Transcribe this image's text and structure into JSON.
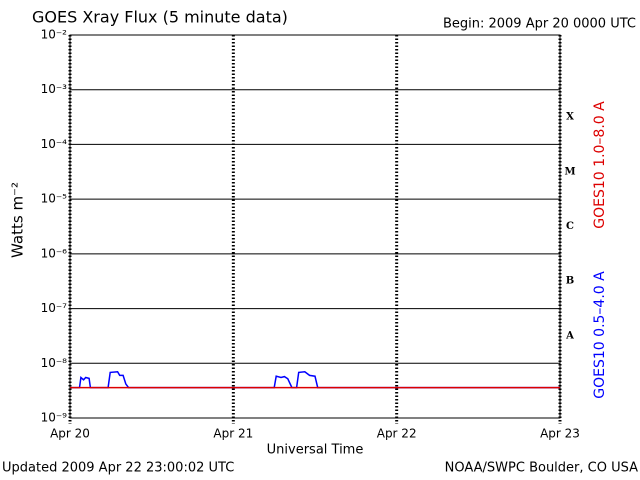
{
  "chart_data": {
    "type": "line",
    "title": "GOES Xray Flux (5 minute data)",
    "subtitle": "Begin:  2009 Apr 20 0000 UTC",
    "ylabel": "Watts m⁻²",
    "xlabel": "Universal Time",
    "log_y": true,
    "grid": true,
    "ylim": [
      1e-09,
      0.01
    ],
    "yticks": [
      {
        "value": 1e-09,
        "label": "10⁻⁹"
      },
      {
        "value": 1e-08,
        "label": "10⁻⁸"
      },
      {
        "value": 1e-07,
        "label": "10⁻⁷"
      },
      {
        "value": 1e-06,
        "label": "10⁻⁶"
      },
      {
        "value": 1e-05,
        "label": "10⁻⁵"
      },
      {
        "value": 0.0001,
        "label": "10⁻⁴"
      },
      {
        "value": 0.001,
        "label": "10⁻³"
      },
      {
        "value": 0.01,
        "label": "10⁻²"
      }
    ],
    "xlim": [
      0,
      72
    ],
    "xticks": [
      {
        "value": 0,
        "label": "Apr 20"
      },
      {
        "value": 24,
        "label": "Apr 21"
      },
      {
        "value": 48,
        "label": "Apr 22"
      },
      {
        "value": 72,
        "label": "Apr 23"
      }
    ],
    "flare_classes": [
      "X",
      "M",
      "C",
      "B",
      "A"
    ],
    "series": [
      {
        "name": "GOES10 0.5–4.0 A",
        "color": "#0000ff",
        "x": [
          0,
          1.4,
          1.6,
          2.0,
          2.3,
          2.8,
          3.0,
          5.6,
          5.9,
          7.0,
          7.3,
          7.8,
          8.2,
          8.6,
          30.0,
          30.3,
          31.0,
          31.5,
          32.0,
          32.6,
          33.3,
          33.6,
          34.5,
          35.2,
          36.0,
          36.4,
          72
        ],
        "values": [
          3.6e-09,
          3.6e-09,
          5.5e-09,
          5e-09,
          5.5e-09,
          5.3e-09,
          3.6e-09,
          3.6e-09,
          6.8e-09,
          7e-09,
          6e-09,
          6e-09,
          4.2e-09,
          3.6e-09,
          3.6e-09,
          5.8e-09,
          5.5e-09,
          5.7e-09,
          5.2e-09,
          3.6e-09,
          3.6e-09,
          6.8e-09,
          7e-09,
          6e-09,
          5.8e-09,
          3.6e-09,
          3.6e-09
        ]
      },
      {
        "name": "GOES10 1.0–8.0 A",
        "color": "#dd0000",
        "x": [
          0,
          72
        ],
        "values": [
          3.6e-09,
          3.6e-09
        ]
      }
    ],
    "footer_left": "Updated 2009 Apr 22 23:00:02 UTC",
    "footer_right": "NOAA/SWPC Boulder, CO USA"
  }
}
